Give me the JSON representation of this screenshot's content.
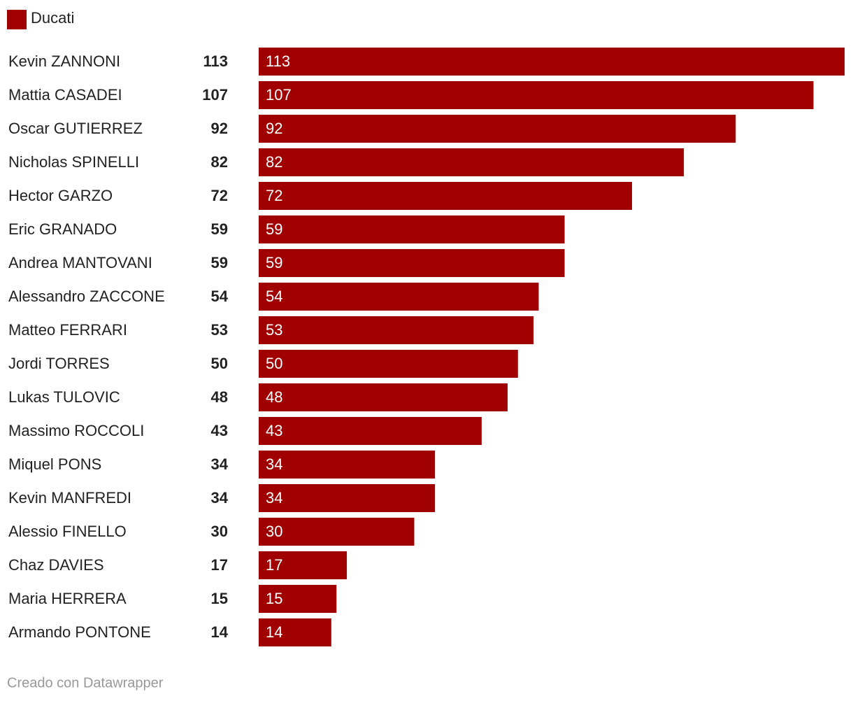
{
  "chart_data": {
    "type": "bar",
    "orientation": "horizontal",
    "categories": [
      "Kevin ZANNONI",
      "Mattia CASADEI",
      "Oscar GUTIERREZ",
      "Nicholas SPINELLI",
      "Hector GARZO",
      "Eric GRANADO",
      "Andrea MANTOVANI",
      "Alessandro ZACCONE",
      "Matteo FERRARI",
      "Jordi TORRES",
      "Lukas TULOVIC",
      "Massimo ROCCOLI",
      "Miquel PONS",
      "Kevin MANFREDI",
      "Alessio FINELLO",
      "Chaz DAVIES",
      "Maria HERRERA",
      "Armando PONTONE"
    ],
    "series": [
      {
        "name": "Ducati",
        "color": "#a00000",
        "values": [
          113,
          107,
          92,
          82,
          72,
          59,
          59,
          54,
          53,
          50,
          48,
          43,
          34,
          34,
          30,
          17,
          15,
          14
        ]
      }
    ],
    "xlim": [
      0,
      113
    ],
    "legend": "top-left",
    "credit": "Creado con Datawrapper"
  }
}
